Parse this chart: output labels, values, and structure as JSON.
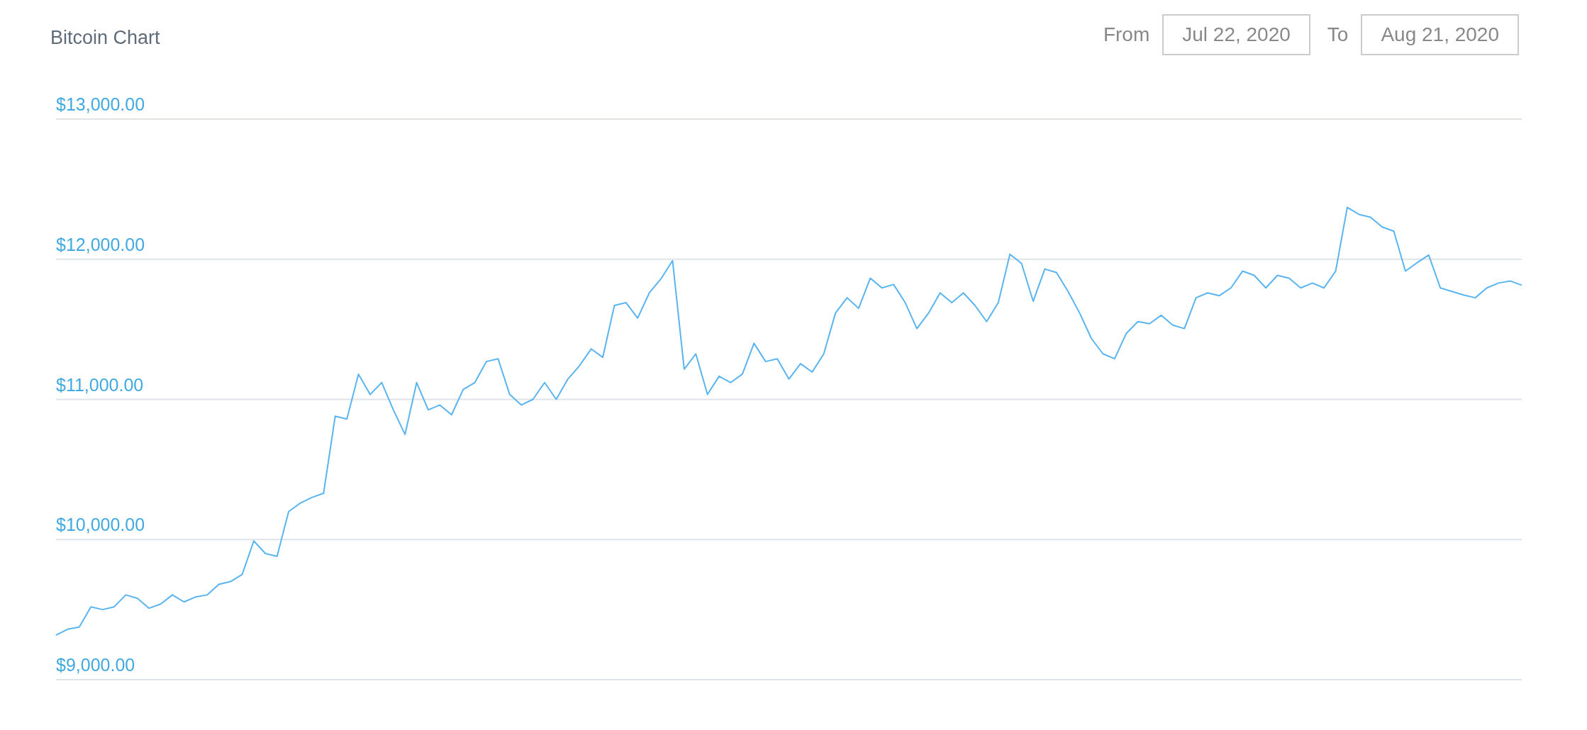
{
  "chart_data": {
    "type": "line",
    "title": "Bitcoin Chart",
    "annotations": [
      "From",
      "Jul 22, 2020",
      "To",
      "Aug 21, 2020"
    ],
    "categories": [
      null,
      null,
      null,
      null,
      null,
      null,
      null,
      null,
      null,
      null,
      null,
      null,
      null,
      null,
      null,
      null,
      null,
      null,
      null,
      null,
      null,
      null,
      null,
      null,
      null,
      null,
      null,
      null,
      null,
      null,
      null,
      null,
      null,
      null,
      null,
      null,
      null,
      null,
      null,
      null,
      null,
      null,
      null,
      null,
      null,
      null,
      null,
      null,
      null,
      null,
      null,
      null,
      null,
      null,
      null,
      null,
      null,
      null,
      null,
      null,
      null,
      null,
      null,
      null,
      null,
      null,
      null,
      null,
      null,
      null,
      null,
      null,
      null,
      null,
      null,
      null,
      null,
      null,
      null,
      null,
      null,
      null,
      null,
      null,
      null,
      null,
      null,
      null,
      null,
      null,
      null,
      null,
      null,
      null,
      null,
      null,
      null,
      null,
      null,
      null,
      null,
      null,
      null,
      null,
      null,
      null,
      null,
      null,
      null,
      null,
      null,
      null,
      null,
      null,
      null,
      null,
      null,
      null,
      null,
      null,
      null,
      null,
      null,
      null,
      null,
      null,
      null
    ],
    "series": [
      {
        "color": "#5ab4f0",
        "values": [
          9318,
          9360,
          9375,
          9520,
          9500,
          9520,
          9605,
          9580,
          9510,
          9540,
          9605,
          9555,
          9590,
          9605,
          9680,
          9700,
          9750,
          9990,
          9900,
          9880,
          10200,
          10260,
          10300,
          10330,
          10880,
          10860,
          11180,
          11035,
          11120,
          10925,
          10750,
          11120,
          10925,
          10960,
          10890,
          11070,
          11120,
          11270,
          11290,
          11035,
          10960,
          11000,
          11120,
          11000,
          11145,
          11240,
          11360,
          11300,
          11670,
          11690,
          11580,
          11760,
          11860,
          11990,
          11215,
          11325,
          11035,
          11165,
          11120,
          11180,
          11400,
          11270,
          11290,
          11145,
          11255,
          11195,
          11325,
          11615,
          11725,
          11650,
          11865,
          11795,
          11820,
          11690,
          11505,
          11615,
          11760,
          11690,
          11760,
          11670,
          11555,
          11690,
          12035,
          11970,
          11700,
          11930,
          11905,
          11770,
          11615,
          11435,
          11325,
          11290,
          11470,
          11555,
          11540,
          11600,
          11530,
          11505,
          11725,
          11760,
          11740,
          11795,
          11915,
          11885,
          11795,
          11885,
          11865,
          11795,
          11830,
          11795,
          11915,
          12370,
          12320,
          12300,
          12230,
          12200,
          11915,
          11975,
          12030,
          11795,
          11770,
          11745,
          11725,
          11795,
          11830,
          11845,
          11815
        ]
      }
    ],
    "ylim": [
      9000,
      13000
    ],
    "yticks": [
      {
        "value": 9000,
        "label": "$9,000.00"
      },
      {
        "value": 10000,
        "label": "$10,000.00"
      },
      {
        "value": 11000,
        "label": "$11,000.00"
      },
      {
        "value": 12000,
        "label": "$12,000.00"
      },
      {
        "value": 13000,
        "label": "$13,000.00"
      }
    ],
    "grid": "y"
  }
}
